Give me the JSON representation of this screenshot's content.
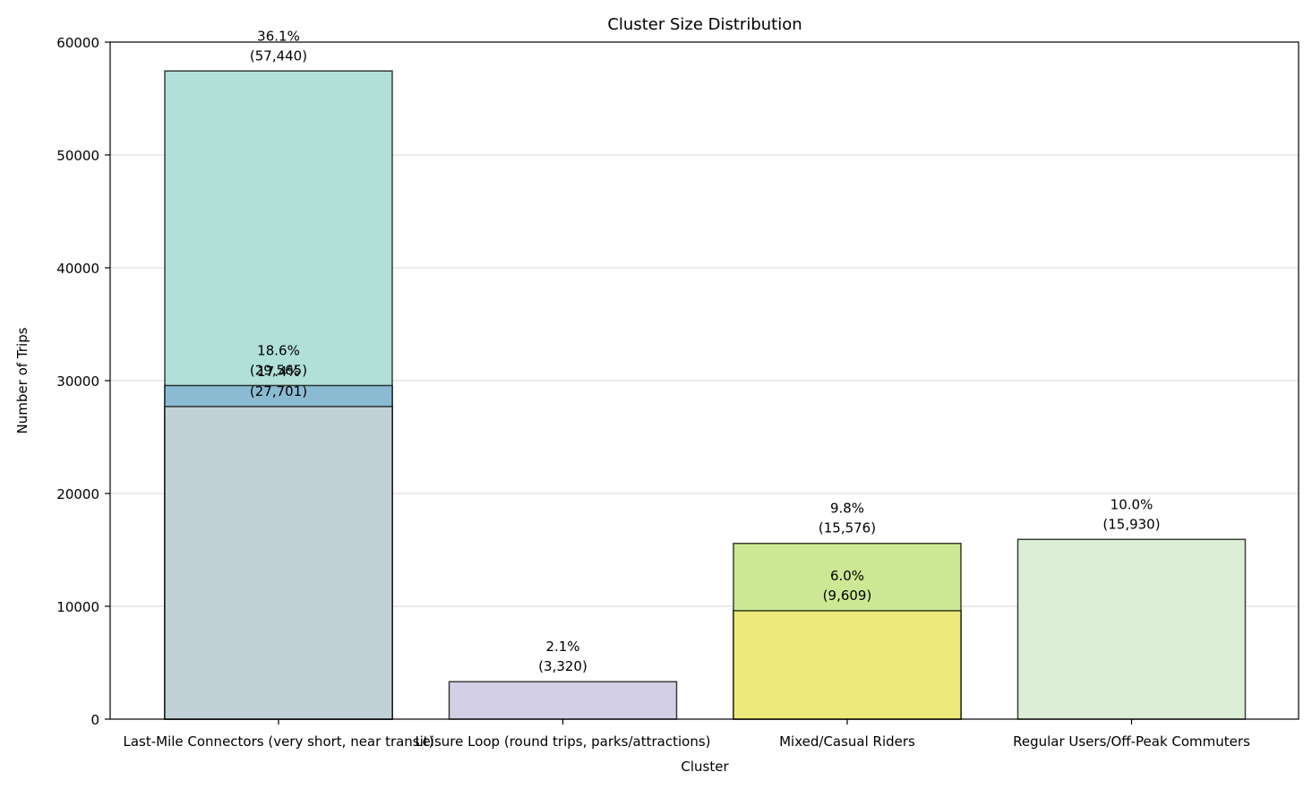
{
  "chart_data": {
    "type": "bar",
    "title": "Cluster Size Distribution",
    "xlabel": "Cluster",
    "ylabel": "Number of Trips",
    "ylim": [
      0,
      60000
    ],
    "yticks": [
      0,
      10000,
      20000,
      30000,
      40000,
      50000,
      60000
    ],
    "grid": "horizontal",
    "categories": [
      "Last-Mile Connectors (very short, near transit)",
      "Leisure Loop (round trips, parks/attractions)",
      "Mixed/Casual Riders",
      "Regular Users/Off-Peak Commuters"
    ],
    "bars": [
      {
        "category_index": 0,
        "value": 57440,
        "percent_label": "36.1%",
        "count_label": "(57,440)",
        "color": "#b0e0d8"
      },
      {
        "category_index": 0,
        "value": 29565,
        "percent_label": "18.6%",
        "count_label": "(29,565)",
        "color": "#8bbbd3"
      },
      {
        "category_index": 0,
        "value": 27701,
        "percent_label": "17.4%",
        "count_label": "(27,701)",
        "color": "#c1d1d7"
      },
      {
        "category_index": 1,
        "value": 3320,
        "percent_label": "2.1%",
        "count_label": "(3,320)",
        "color": "#d3cfe5"
      },
      {
        "category_index": 2,
        "value": 15576,
        "percent_label": "9.8%",
        "count_label": "(15,576)",
        "color": "#cce894"
      },
      {
        "category_index": 2,
        "value": 9609,
        "percent_label": "6.0%",
        "count_label": "(9,609)",
        "color": "#ecea7b"
      },
      {
        "category_index": 3,
        "value": 15930,
        "percent_label": "10.0%",
        "count_label": "(15,930)",
        "color": "#dcefd6"
      }
    ]
  }
}
